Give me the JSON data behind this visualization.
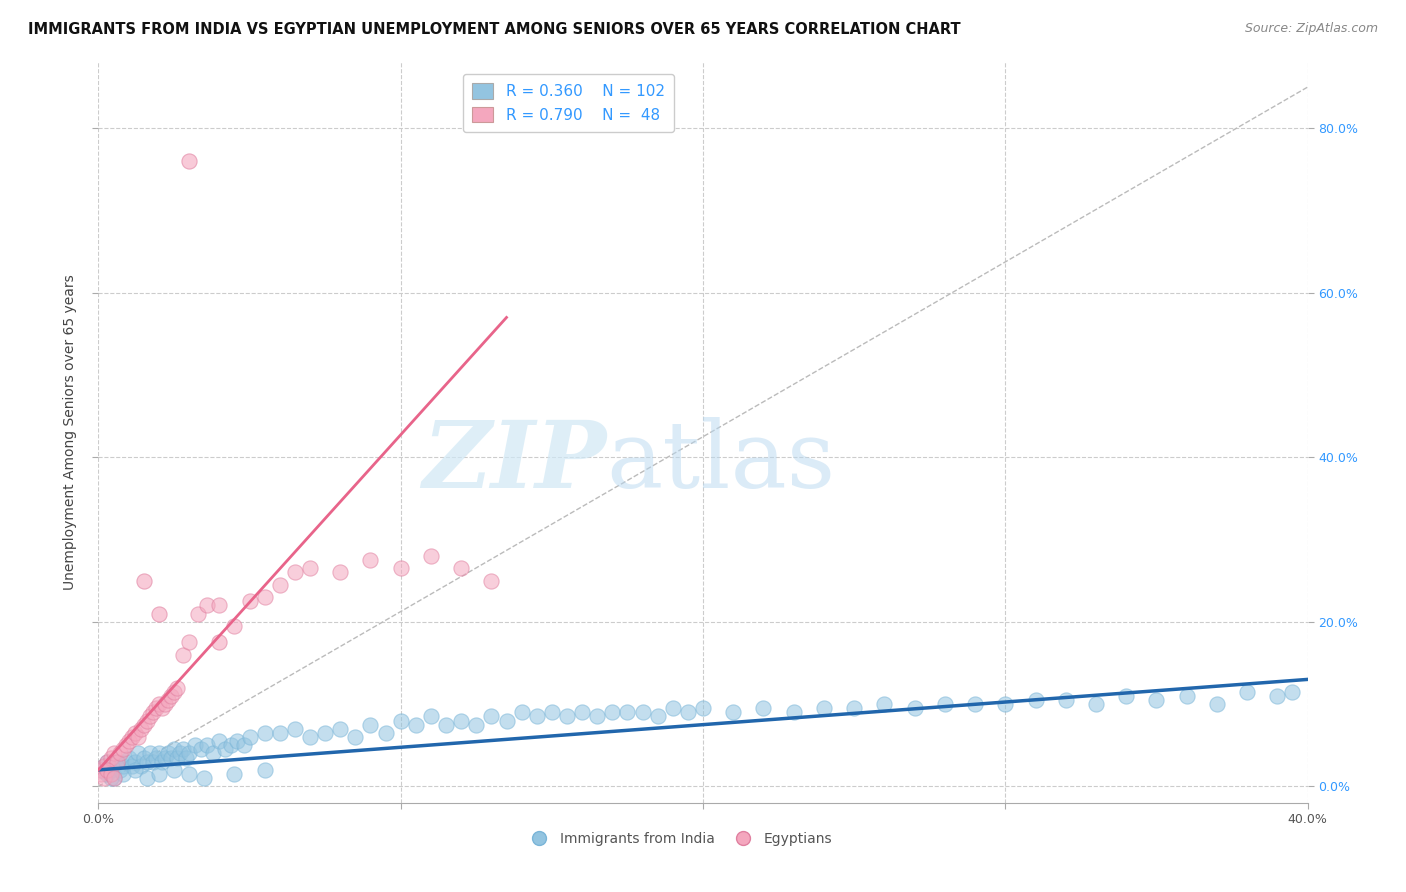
{
  "title": "IMMIGRANTS FROM INDIA VS EGYPTIAN UNEMPLOYMENT AMONG SENIORS OVER 65 YEARS CORRELATION CHART",
  "source": "Source: ZipAtlas.com",
  "ylabel": "Unemployment Among Seniors over 65 years",
  "xlim": [
    0.0,
    0.4
  ],
  "ylim": [
    -0.02,
    0.88
  ],
  "xticks": [
    0.0,
    0.1,
    0.2,
    0.3,
    0.4
  ],
  "yticks": [
    0.0,
    0.2,
    0.4,
    0.6,
    0.8
  ],
  "xticklabels": [
    "0.0%",
    "",
    "",
    "",
    "40.0%"
  ],
  "yticklabels_right": [
    "0.0%",
    "20.0%",
    "40.0%",
    "60.0%",
    "80.0%"
  ],
  "blue_color": "#93c4e0",
  "pink_color": "#f4a7be",
  "blue_line_color": "#2166ac",
  "pink_line_color": "#e8648a",
  "dashed_line_color": "#bbbbbb",
  "grid_color": "#cccccc",
  "legend_text_color": "#3399ff",
  "title_fontsize": 10.5,
  "source_fontsize": 9,
  "axis_label_fontsize": 10,
  "tick_fontsize": 9,
  "legend_fontsize": 11,
  "blue_scatter_x": [
    0.001,
    0.002,
    0.003,
    0.003,
    0.004,
    0.005,
    0.005,
    0.006,
    0.007,
    0.008,
    0.009,
    0.01,
    0.011,
    0.012,
    0.013,
    0.014,
    0.015,
    0.016,
    0.017,
    0.018,
    0.019,
    0.02,
    0.021,
    0.022,
    0.023,
    0.024,
    0.025,
    0.026,
    0.027,
    0.028,
    0.029,
    0.03,
    0.032,
    0.034,
    0.036,
    0.038,
    0.04,
    0.042,
    0.044,
    0.046,
    0.048,
    0.05,
    0.055,
    0.06,
    0.065,
    0.07,
    0.075,
    0.08,
    0.085,
    0.09,
    0.095,
    0.1,
    0.105,
    0.11,
    0.115,
    0.12,
    0.125,
    0.13,
    0.135,
    0.14,
    0.145,
    0.15,
    0.155,
    0.16,
    0.165,
    0.17,
    0.175,
    0.18,
    0.185,
    0.19,
    0.195,
    0.2,
    0.21,
    0.22,
    0.23,
    0.24,
    0.25,
    0.26,
    0.27,
    0.28,
    0.29,
    0.3,
    0.31,
    0.32,
    0.33,
    0.34,
    0.35,
    0.36,
    0.37,
    0.38,
    0.39,
    0.395,
    0.004,
    0.008,
    0.012,
    0.016,
    0.02,
    0.025,
    0.03,
    0.035,
    0.045,
    0.055
  ],
  "blue_scatter_y": [
    0.02,
    0.025,
    0.015,
    0.03,
    0.02,
    0.025,
    0.01,
    0.03,
    0.02,
    0.025,
    0.03,
    0.035,
    0.025,
    0.03,
    0.04,
    0.025,
    0.035,
    0.03,
    0.04,
    0.03,
    0.035,
    0.04,
    0.03,
    0.035,
    0.04,
    0.035,
    0.045,
    0.035,
    0.04,
    0.045,
    0.035,
    0.04,
    0.05,
    0.045,
    0.05,
    0.04,
    0.055,
    0.045,
    0.05,
    0.055,
    0.05,
    0.06,
    0.065,
    0.065,
    0.07,
    0.06,
    0.065,
    0.07,
    0.06,
    0.075,
    0.065,
    0.08,
    0.075,
    0.085,
    0.075,
    0.08,
    0.075,
    0.085,
    0.08,
    0.09,
    0.085,
    0.09,
    0.085,
    0.09,
    0.085,
    0.09,
    0.09,
    0.09,
    0.085,
    0.095,
    0.09,
    0.095,
    0.09,
    0.095,
    0.09,
    0.095,
    0.095,
    0.1,
    0.095,
    0.1,
    0.1,
    0.1,
    0.105,
    0.105,
    0.1,
    0.11,
    0.105,
    0.11,
    0.1,
    0.115,
    0.11,
    0.115,
    0.01,
    0.015,
    0.02,
    0.01,
    0.015,
    0.02,
    0.015,
    0.01,
    0.015,
    0.02
  ],
  "pink_scatter_x": [
    0.001,
    0.002,
    0.003,
    0.004,
    0.005,
    0.006,
    0.007,
    0.008,
    0.009,
    0.01,
    0.011,
    0.012,
    0.013,
    0.014,
    0.015,
    0.016,
    0.017,
    0.018,
    0.019,
    0.02,
    0.021,
    0.022,
    0.023,
    0.024,
    0.025,
    0.026,
    0.028,
    0.03,
    0.033,
    0.036,
    0.04,
    0.045,
    0.05,
    0.055,
    0.06,
    0.065,
    0.07,
    0.08,
    0.09,
    0.1,
    0.11,
    0.12,
    0.13,
    0.001,
    0.002,
    0.003,
    0.004,
    0.005
  ],
  "pink_scatter_y": [
    0.02,
    0.025,
    0.03,
    0.035,
    0.04,
    0.03,
    0.04,
    0.045,
    0.05,
    0.055,
    0.06,
    0.065,
    0.06,
    0.07,
    0.075,
    0.08,
    0.085,
    0.09,
    0.095,
    0.1,
    0.095,
    0.1,
    0.105,
    0.11,
    0.115,
    0.12,
    0.16,
    0.175,
    0.21,
    0.22,
    0.22,
    0.195,
    0.225,
    0.23,
    0.245,
    0.26,
    0.265,
    0.26,
    0.275,
    0.265,
    0.28,
    0.265,
    0.25,
    0.015,
    0.01,
    0.02,
    0.015,
    0.01
  ],
  "blue_line_x": [
    0.0,
    0.4
  ],
  "blue_line_y": [
    0.02,
    0.13
  ],
  "pink_line_x": [
    0.0,
    0.135
  ],
  "pink_line_y": [
    0.02,
    0.57
  ],
  "dashed_line_x": [
    0.0,
    0.4
  ],
  "dashed_line_y": [
    0.0,
    0.85
  ],
  "outlier_pink_x": [
    0.03
  ],
  "outlier_pink_y": [
    0.76
  ],
  "outlier2_pink_x": [
    0.015
  ],
  "outlier2_pink_y": [
    0.25
  ],
  "outlier3_pink_x": [
    0.02
  ],
  "outlier3_pink_y": [
    0.21
  ],
  "outlier4_pink_x": [
    0.04
  ],
  "outlier4_pink_y": [
    0.175
  ]
}
